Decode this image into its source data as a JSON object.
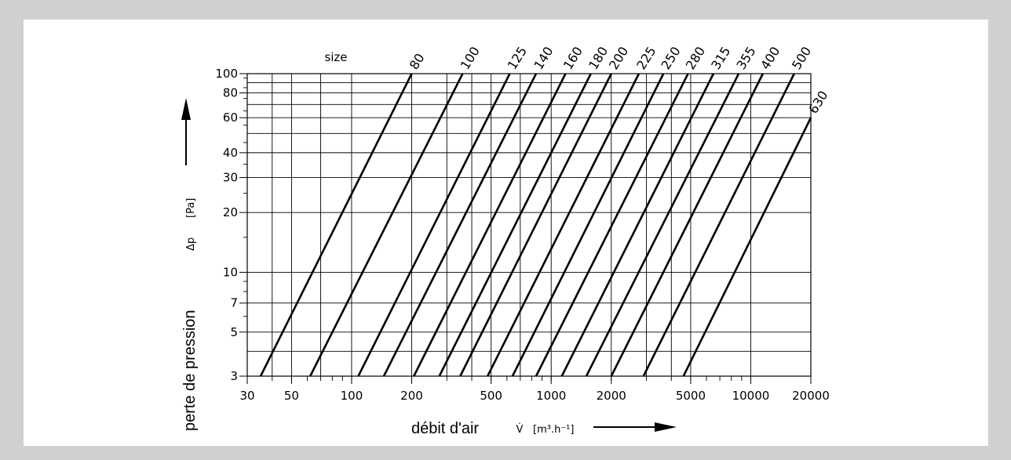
{
  "chart_data": {
    "type": "line",
    "x_scale": "log",
    "y_scale": "log",
    "xlim": [
      30,
      20000
    ],
    "ylim": [
      3,
      100
    ],
    "grid": true,
    "xlabel": "débit d'air",
    "xlabel_symbol": "V̇",
    "xunit": "[m³.h⁻¹]",
    "ylabel": "perte de pression",
    "ylabel_symbol": "Δp",
    "yunit": "[Pa]",
    "series_header": "size",
    "x_ticks": [
      30,
      50,
      100,
      200,
      500,
      1000,
      2000,
      5000,
      10000,
      20000
    ],
    "x_tick_labels": [
      "30",
      "50",
      "100",
      "200",
      "500",
      "1000",
      "2000",
      "5000",
      "10000",
      "20000"
    ],
    "x_gridlines": [
      30,
      40,
      50,
      70,
      100,
      200,
      300,
      400,
      500,
      700,
      1000,
      2000,
      3000,
      4000,
      5000,
      10000,
      20000
    ],
    "y_ticks": [
      3,
      5,
      7,
      10,
      20,
      30,
      40,
      60,
      80,
      100
    ],
    "y_tick_labels": [
      "3",
      "5",
      "7",
      "10",
      "20",
      "30",
      "40",
      "60",
      "80",
      "100"
    ],
    "y_gridlines": [
      3,
      4,
      5,
      7,
      10,
      20,
      30,
      40,
      50,
      60,
      70,
      80,
      90,
      100
    ],
    "y_minor_ticks": [
      6,
      8,
      9,
      15,
      25,
      35,
      45,
      55,
      65,
      75,
      85,
      95
    ],
    "series": [
      {
        "name": "80",
        "points": [
          [
            35,
            3
          ],
          [
            200,
            100
          ]
        ]
      },
      {
        "name": "100",
        "points": [
          [
            62,
            3
          ],
          [
            360,
            100
          ]
        ]
      },
      {
        "name": "125",
        "points": [
          [
            108,
            3
          ],
          [
            620,
            100
          ]
        ]
      },
      {
        "name": "140",
        "points": [
          [
            145,
            3
          ],
          [
            840,
            100
          ]
        ]
      },
      {
        "name": "160",
        "points": [
          [
            205,
            3
          ],
          [
            1180,
            100
          ]
        ]
      },
      {
        "name": "180",
        "points": [
          [
            275,
            3
          ],
          [
            1580,
            100
          ]
        ]
      },
      {
        "name": "200",
        "points": [
          [
            350,
            3
          ],
          [
            2000,
            100
          ]
        ]
      },
      {
        "name": "225",
        "points": [
          [
            480,
            3
          ],
          [
            2750,
            100
          ]
        ]
      },
      {
        "name": "250",
        "points": [
          [
            640,
            3
          ],
          [
            3650,
            100
          ]
        ]
      },
      {
        "name": "280",
        "points": [
          [
            840,
            3
          ],
          [
            4850,
            100
          ]
        ]
      },
      {
        "name": "315",
        "points": [
          [
            1130,
            3
          ],
          [
            6500,
            100
          ]
        ]
      },
      {
        "name": "355",
        "points": [
          [
            1500,
            3
          ],
          [
            8700,
            100
          ]
        ]
      },
      {
        "name": "400",
        "points": [
          [
            2000,
            3
          ],
          [
            11500,
            100
          ]
        ]
      },
      {
        "name": "500",
        "points": [
          [
            2900,
            3
          ],
          [
            16500,
            100
          ]
        ]
      },
      {
        "name": "630",
        "points": [
          [
            4600,
            3
          ],
          [
            20000,
            60
          ]
        ]
      }
    ]
  }
}
